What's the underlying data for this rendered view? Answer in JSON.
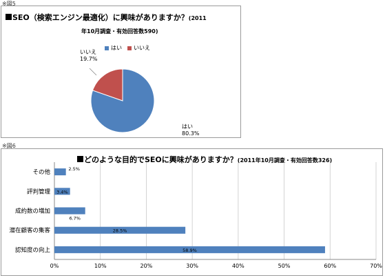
{
  "figure_labels": {
    "fig5": "※図5",
    "fig6": "※図6"
  },
  "chart_data": [
    {
      "type": "pie",
      "title": "SEO（検索エンジン最適化）に興味がありますか？",
      "title_suffix": "(2011",
      "subtitle": "年10月調査・有効回答数590)",
      "legend_position": "top",
      "slices": [
        {
          "label": "はい",
          "value": 80.3,
          "value_label": "80.3%",
          "color": "#4f81bd"
        },
        {
          "label": "いいえ",
          "value": 19.7,
          "value_label": "19.7%",
          "color": "#c0504d"
        }
      ]
    },
    {
      "type": "bar",
      "orientation": "horizontal",
      "title": "どのような目的でSEOに興味がありますか？",
      "title_suffix": "(2011年10月調査・有効回答数326)",
      "categories": [
        "その他",
        "評判管理",
        "成約数の増加",
        "潜在顧客の集客",
        "認知度の向上"
      ],
      "values": [
        2.5,
        3.4,
        6.7,
        28.5,
        58.9
      ],
      "value_labels": [
        "2.5%",
        "3.4%",
        "6.7%",
        "28.5%",
        "58.9%"
      ],
      "xlim": [
        0,
        70
      ],
      "xticks": [
        "0%",
        "10%",
        "20%",
        "30%",
        "40%",
        "50%",
        "60%",
        "70%"
      ],
      "grid": true,
      "bar_color": "#4f81bd"
    }
  ]
}
